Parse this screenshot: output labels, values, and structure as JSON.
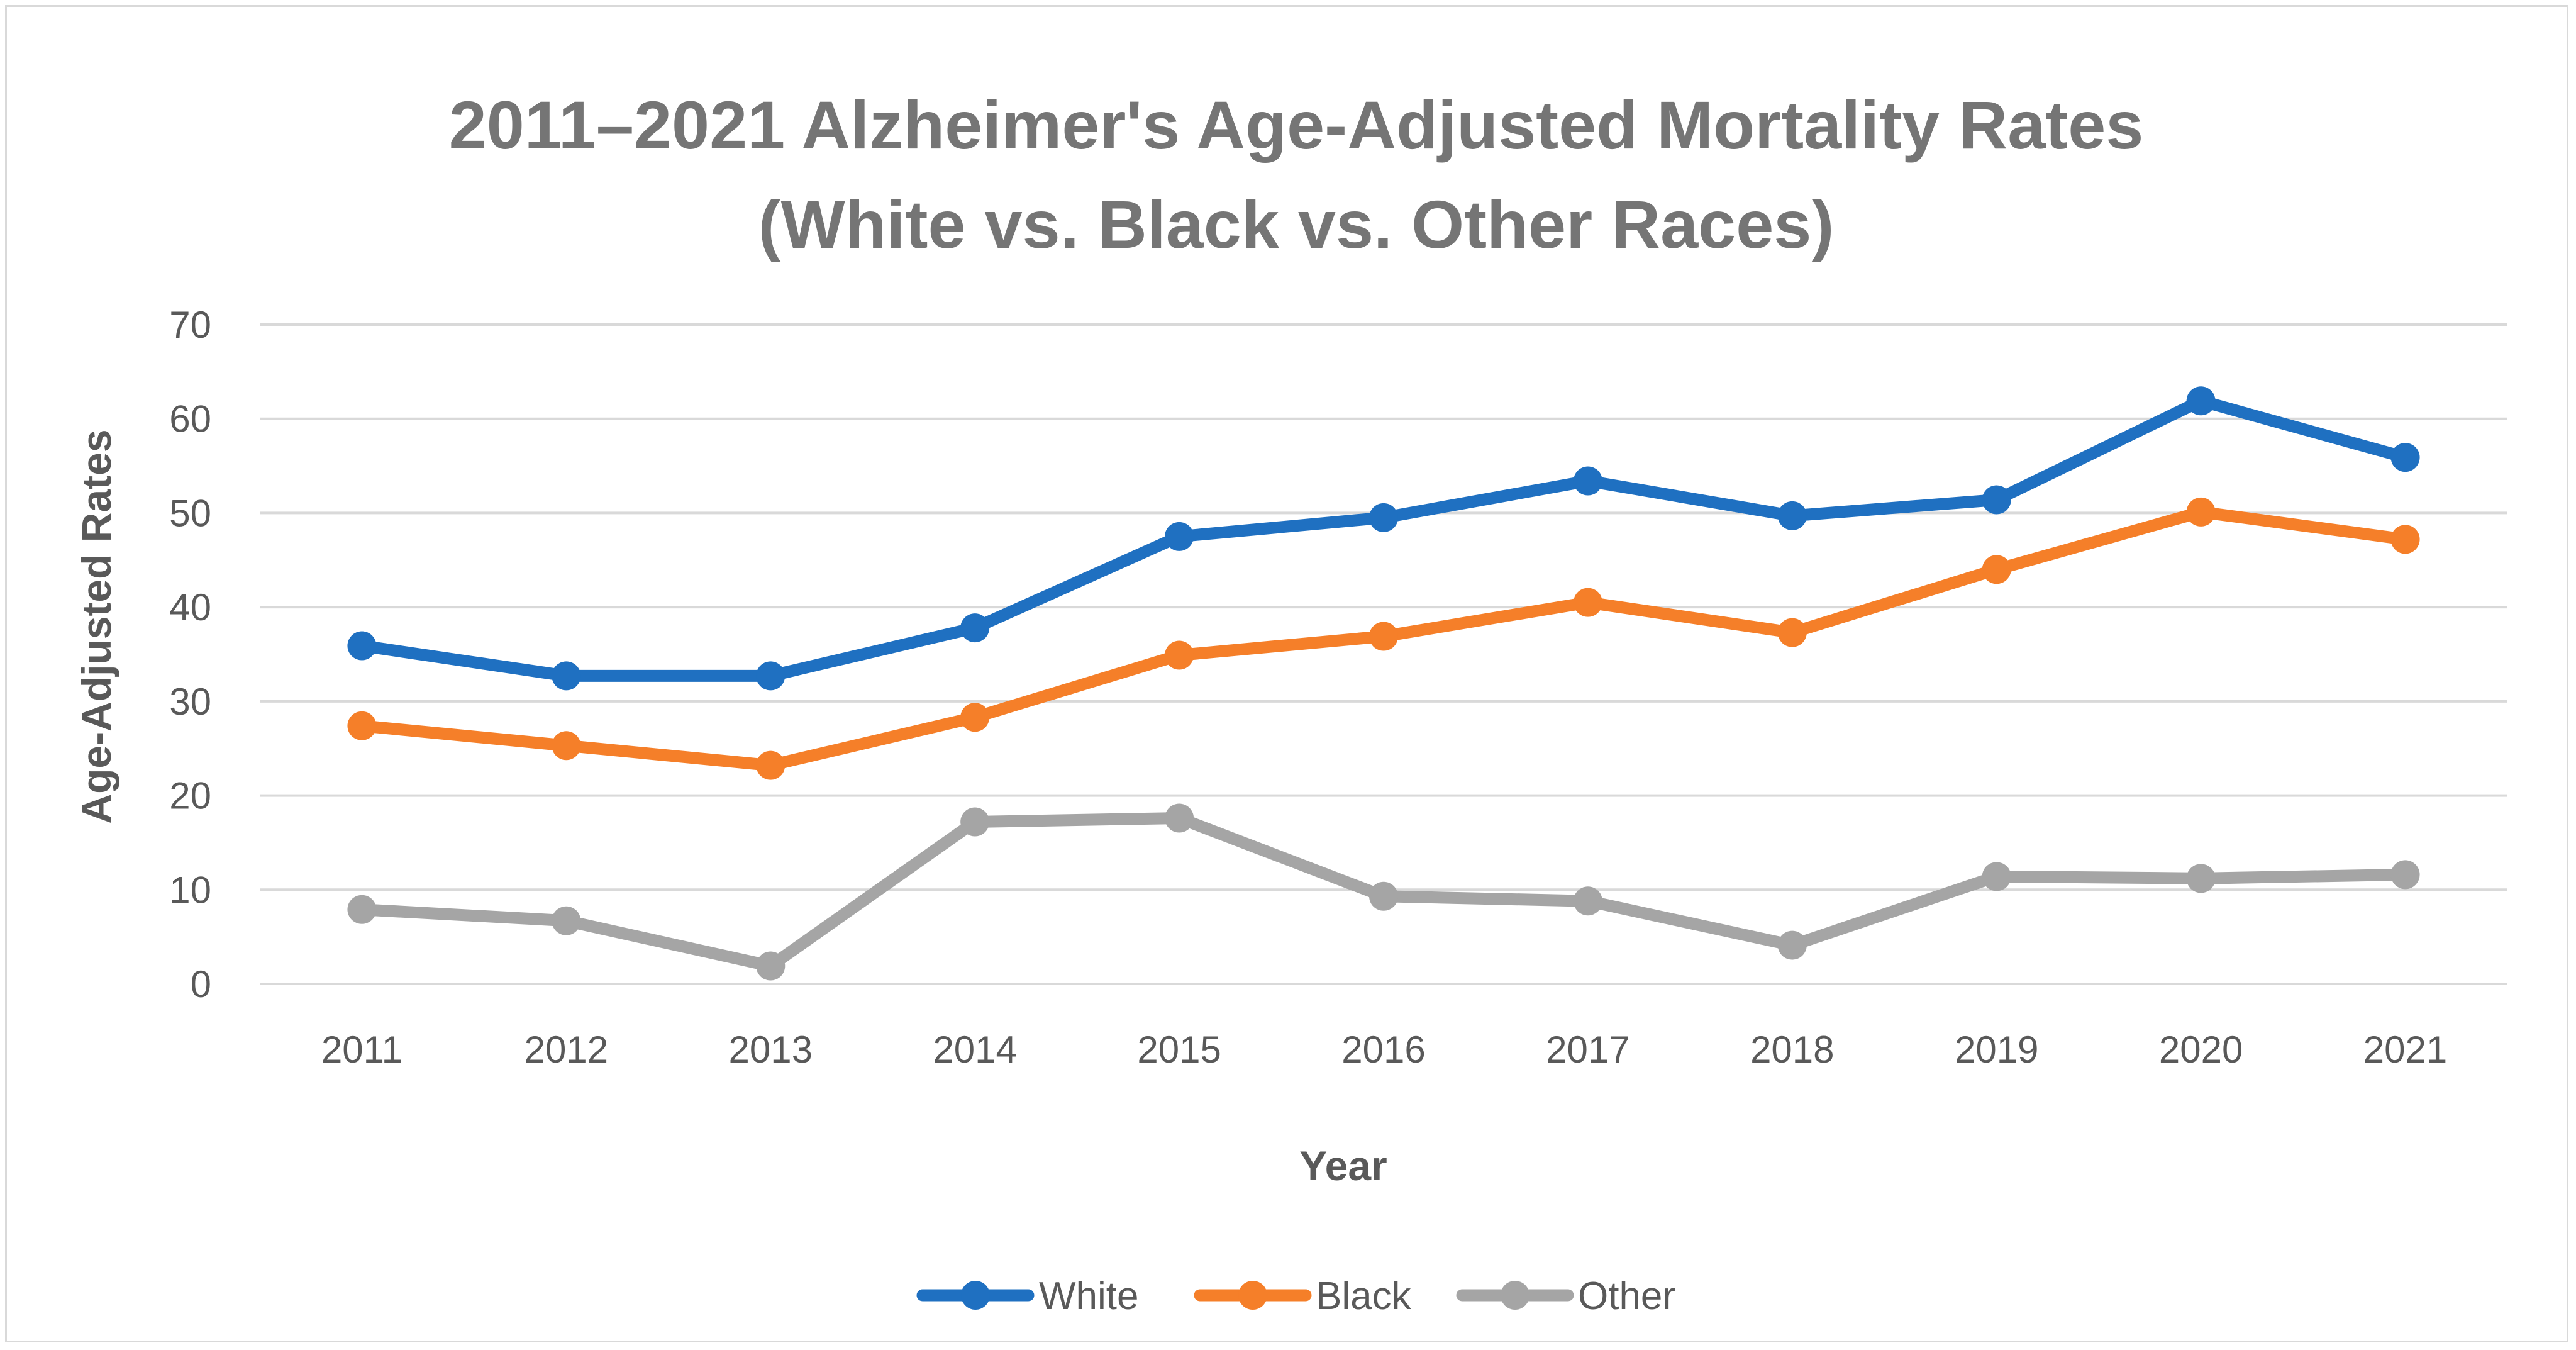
{
  "chart_data": {
    "type": "line",
    "title_line1": "2011–2021 Alzheimer's Age-Adjusted Mortality Rates",
    "title_line2": "(White vs. Black vs. Other Races)",
    "xlabel": "Year",
    "ylabel": "Age-Adjusted Rates",
    "ylim": [
      0,
      70
    ],
    "yticks": [
      "0",
      "10",
      "20",
      "30",
      "40",
      "50",
      "60",
      "70"
    ],
    "grid": true,
    "legend_position": "bottom",
    "categories": [
      "2011",
      "2012",
      "2013",
      "2014",
      "2015",
      "2016",
      "2017",
      "2018",
      "2019",
      "2020",
      "2021"
    ],
    "series": [
      {
        "name": "White",
        "color": "#1f70c1",
        "values": [
          35.9,
          32.7,
          32.7,
          37.8,
          47.5,
          49.5,
          53.4,
          49.7,
          51.4,
          61.9,
          55.9
        ]
      },
      {
        "name": "Black",
        "color": "#f57f29",
        "values": [
          27.4,
          25.3,
          23.2,
          28.3,
          34.9,
          36.9,
          40.5,
          37.3,
          44.0,
          50.1,
          47.2
        ]
      },
      {
        "name": "Other",
        "color": "#a5a5a5",
        "values": [
          7.9,
          6.7,
          1.9,
          17.2,
          17.6,
          9.3,
          8.8,
          4.1,
          11.4,
          11.2,
          11.6
        ]
      }
    ]
  }
}
